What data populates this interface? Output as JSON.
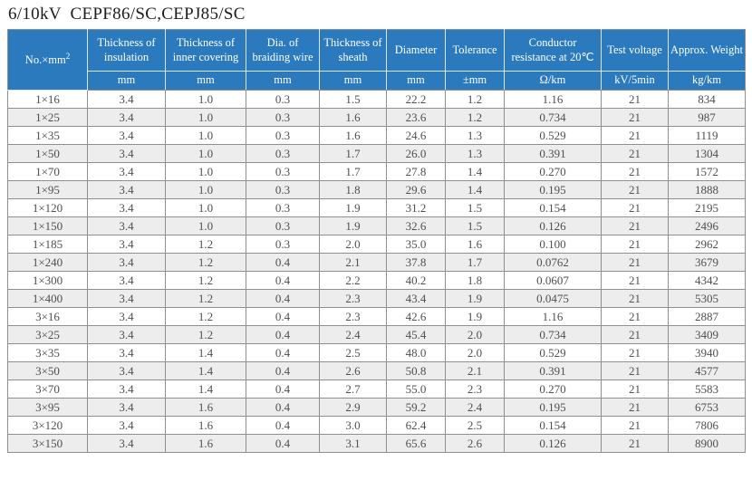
{
  "title": "6/10kV  CEPF86/SC,CEPJ85/SC",
  "colors": {
    "header_bg": "#2b7abe",
    "header_text": "#ffffff",
    "row_stripe": "#ededed",
    "grid_border": "#8f8f8f",
    "cell_text": "#4f4f4f"
  },
  "table": {
    "first_column": {
      "label": "No.×mm",
      "sup": "2"
    },
    "headers": [
      "Thickness of insulation",
      "Thickness of inner covering",
      "Dia. of braiding wire",
      "Thickness of sheath",
      "Diameter",
      "Tolerance",
      "Conductor resistance at 20℃",
      "Test voltage",
      "Approx. Weight"
    ],
    "units": [
      "mm",
      "mm",
      "mm",
      "mm",
      "mm",
      "±mm",
      "Ω/km",
      "kV/5min",
      "kg/km"
    ],
    "rows": [
      [
        "1×16",
        "3.4",
        "1.0",
        "0.3",
        "1.5",
        "22.2",
        "1.2",
        "1.16",
        "21",
        "834"
      ],
      [
        "1×25",
        "3.4",
        "1.0",
        "0.3",
        "1.6",
        "23.6",
        "1.2",
        "0.734",
        "21",
        "987"
      ],
      [
        "1×35",
        "3.4",
        "1.0",
        "0.3",
        "1.6",
        "24.6",
        "1.3",
        "0.529",
        "21",
        "1119"
      ],
      [
        "1×50",
        "3.4",
        "1.0",
        "0.3",
        "1.7",
        "26.0",
        "1.3",
        "0.391",
        "21",
        "1304"
      ],
      [
        "1×70",
        "3.4",
        "1.0",
        "0.3",
        "1.7",
        "27.8",
        "1.4",
        "0.270",
        "21",
        "1572"
      ],
      [
        "1×95",
        "3.4",
        "1.0",
        "0.3",
        "1.8",
        "29.6",
        "1.4",
        "0.195",
        "21",
        "1888"
      ],
      [
        "1×120",
        "3.4",
        "1.0",
        "0.3",
        "1.9",
        "31.2",
        "1.5",
        "0.154",
        "21",
        "2195"
      ],
      [
        "1×150",
        "3.4",
        "1.0",
        "0.3",
        "1.9",
        "32.6",
        "1.5",
        "0.126",
        "21",
        "2496"
      ],
      [
        "1×185",
        "3.4",
        "1.2",
        "0.3",
        "2.0",
        "35.0",
        "1.6",
        "0.100",
        "21",
        "2962"
      ],
      [
        "1×240",
        "3.4",
        "1.2",
        "0.4",
        "2.1",
        "37.8",
        "1.7",
        "0.0762",
        "21",
        "3679"
      ],
      [
        "1×300",
        "3.4",
        "1.2",
        "0.4",
        "2.2",
        "40.2",
        "1.8",
        "0.0607",
        "21",
        "4342"
      ],
      [
        "1×400",
        "3.4",
        "1.2",
        "0.4",
        "2.3",
        "43.4",
        "1.9",
        "0.0475",
        "21",
        "5305"
      ],
      [
        "3×16",
        "3.4",
        "1.2",
        "0.4",
        "2.3",
        "42.6",
        "1.9",
        "1.16",
        "21",
        "2887"
      ],
      [
        "3×25",
        "3.4",
        "1.2",
        "0.4",
        "2.4",
        "45.4",
        "2.0",
        "0.734",
        "21",
        "3409"
      ],
      [
        "3×35",
        "3.4",
        "1.4",
        "0.4",
        "2.5",
        "48.0",
        "2.0",
        "0.529",
        "21",
        "3940"
      ],
      [
        "3×50",
        "3.4",
        "1.4",
        "0.4",
        "2.6",
        "50.8",
        "2.1",
        "0.391",
        "21",
        "4577"
      ],
      [
        "3×70",
        "3.4",
        "1.4",
        "0.4",
        "2.7",
        "55.0",
        "2.3",
        "0.270",
        "21",
        "5583"
      ],
      [
        "3×95",
        "3.4",
        "1.6",
        "0.4",
        "2.9",
        "59.2",
        "2.4",
        "0.195",
        "21",
        "6753"
      ],
      [
        "3×120",
        "3.4",
        "1.6",
        "0.4",
        "3.0",
        "62.4",
        "2.5",
        "0.154",
        "21",
        "7806"
      ],
      [
        "3×150",
        "3.4",
        "1.6",
        "0.4",
        "3.1",
        "65.6",
        "2.6",
        "0.126",
        "21",
        "8900"
      ]
    ]
  }
}
